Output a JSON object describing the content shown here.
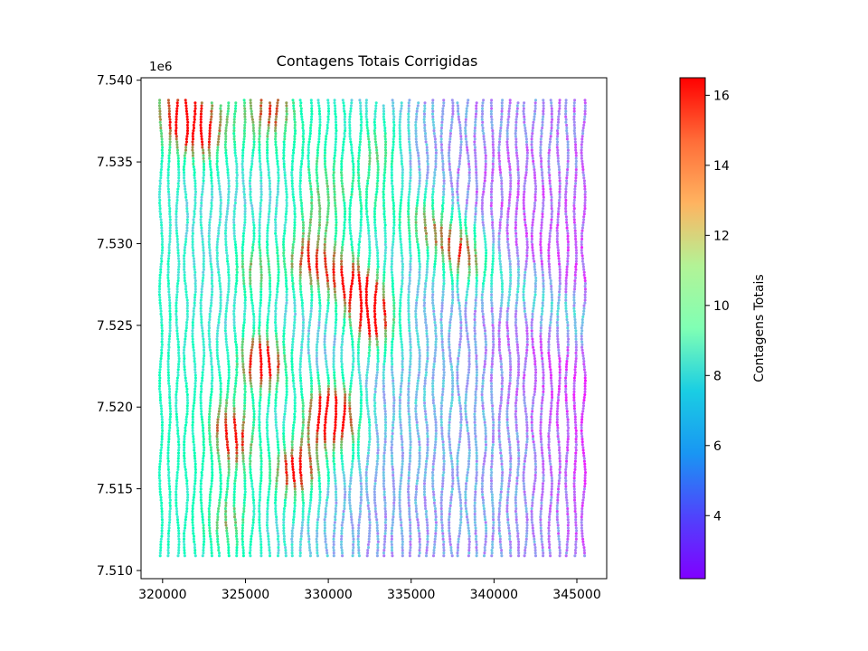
{
  "chart_data": {
    "type": "scatter",
    "title": "Contagens Totais Corrigidas",
    "xlabel": "",
    "ylabel": "",
    "x_ticks": [
      320000,
      325000,
      330000,
      335000,
      340000,
      345000
    ],
    "x_tick_labels": [
      "320000",
      "325000",
      "330000",
      "335000",
      "340000",
      "345000"
    ],
    "y_ticks": [
      7510000,
      7515000,
      7520000,
      7525000,
      7530000,
      7535000,
      7540000
    ],
    "y_tick_labels": [
      "7.510",
      "7.515",
      "7.520",
      "7.525",
      "7.530",
      "7.535",
      "7.540"
    ],
    "y_offset_label": "1e6",
    "xlim": [
      318700,
      346800
    ],
    "ylim": [
      7509500,
      7540150
    ],
    "grid": false,
    "lines": {
      "x_start": 319900,
      "x_spacing": 500,
      "count": 52,
      "y_min": 7510900,
      "y_max": 7538800
    },
    "hotspots": [
      {
        "x": 321200,
        "y": 7537800,
        "value": 16.2
      },
      {
        "x": 322500,
        "y": 7536500,
        "value": 14.0
      },
      {
        "x": 325500,
        "y": 7528500,
        "value": 14.5
      },
      {
        "x": 325700,
        "y": 7523000,
        "value": 15.5
      },
      {
        "x": 326500,
        "y": 7522500,
        "value": 14.5
      },
      {
        "x": 328500,
        "y": 7529000,
        "value": 15.0
      },
      {
        "x": 330000,
        "y": 7528500,
        "value": 14.0
      },
      {
        "x": 331500,
        "y": 7527500,
        "value": 15.5
      },
      {
        "x": 332500,
        "y": 7526500,
        "value": 15.0
      },
      {
        "x": 332800,
        "y": 7525000,
        "value": 16.0
      },
      {
        "x": 329500,
        "y": 7519500,
        "value": 16.0
      },
      {
        "x": 330500,
        "y": 7520000,
        "value": 15.0
      },
      {
        "x": 324000,
        "y": 7519000,
        "value": 14.0
      },
      {
        "x": 327700,
        "y": 7516000,
        "value": 15.5
      },
      {
        "x": 328700,
        "y": 7516500,
        "value": 13.5
      },
      {
        "x": 331000,
        "y": 7518500,
        "value": 13.0
      },
      {
        "x": 326500,
        "y": 7538500,
        "value": 14.5
      },
      {
        "x": 333000,
        "y": 7535500,
        "value": 13.0
      },
      {
        "x": 336000,
        "y": 7531500,
        "value": 12.5
      },
      {
        "x": 337500,
        "y": 7530000,
        "value": 13.0
      },
      {
        "x": 338500,
        "y": 7529000,
        "value": 12.5
      },
      {
        "x": 329500,
        "y": 7532000,
        "value": 13.0
      },
      {
        "x": 324500,
        "y": 7517500,
        "value": 13.5
      },
      {
        "x": 324000,
        "y": 7513000,
        "value": 12.5
      }
    ],
    "colorbar": {
      "label": "Contagens Totais",
      "min": 2.2,
      "max": 16.5,
      "ticks": [
        4,
        6,
        8,
        10,
        12,
        14,
        16
      ],
      "tick_labels": [
        "4",
        "6",
        "8",
        "10",
        "12",
        "14",
        "16"
      ],
      "colormap": "rainbow"
    }
  }
}
